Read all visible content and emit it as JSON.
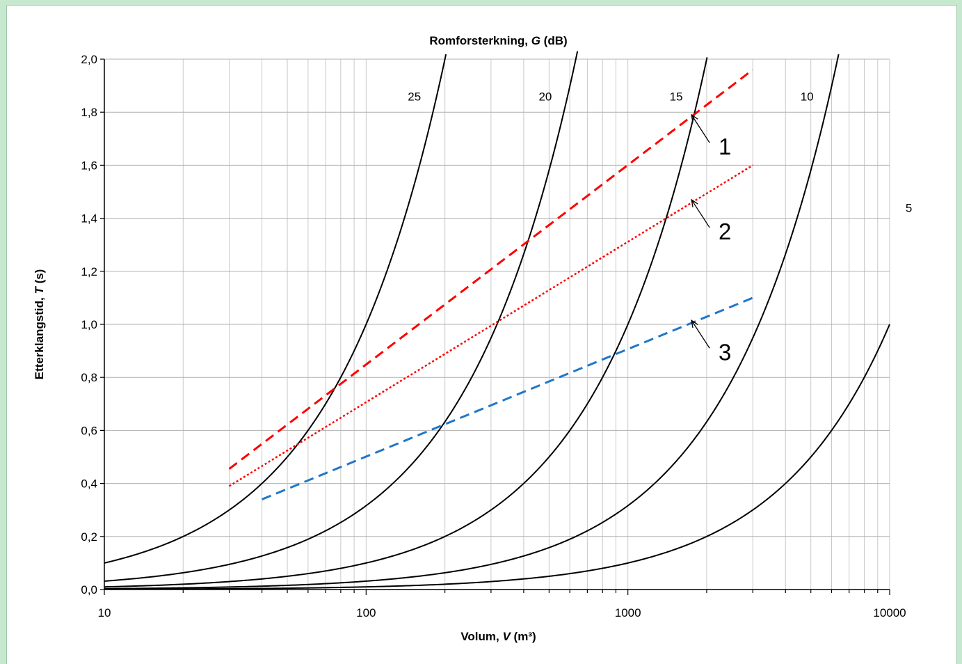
{
  "chart_data": {
    "type": "line",
    "title": "",
    "top_axis_title": {
      "main": "Romforsterkning, ",
      "italic": "G",
      "tail": " (dB)"
    },
    "xlabel": {
      "main": "Volum, ",
      "italic": "V",
      "tail": " (m³)"
    },
    "ylabel": {
      "main": "Etterklangstid, ",
      "italic": "T",
      "tail": " (s)"
    },
    "x_scale": "log",
    "xlim": [
      10,
      10000
    ],
    "ylim": [
      0,
      2.0
    ],
    "x_ticks": [
      {
        "value": 10,
        "label": "10"
      },
      {
        "value": 100,
        "label": "100"
      },
      {
        "value": 1000,
        "label": "1000"
      },
      {
        "value": 10000,
        "label": "10000"
      }
    ],
    "y_ticks": [
      {
        "value": 0,
        "label": "0,0"
      },
      {
        "value": 0.2,
        "label": "0,2"
      },
      {
        "value": 0.4,
        "label": "0,4"
      },
      {
        "value": 0.6,
        "label": "0,6"
      },
      {
        "value": 0.8,
        "label": "0,8"
      },
      {
        "value": 1.0,
        "label": "1,0"
      },
      {
        "value": 1.2,
        "label": "1,2"
      },
      {
        "value": 1.4,
        "label": "1,4"
      },
      {
        "value": 1.6,
        "label": "1,6"
      },
      {
        "value": 1.8,
        "label": "1,8"
      },
      {
        "value": 2.0,
        "label": "2,0"
      }
    ],
    "grid": true,
    "gain_curves": [
      {
        "label": "25",
        "g_db": 25,
        "label_at": [
          14.5,
          1.86
        ]
      },
      {
        "label": "20",
        "g_db": 20,
        "label_at": [
          12.4,
          1.86
        ]
      },
      {
        "label": "15",
        "g_db": 15,
        "label_at": [
          12.05,
          1.86
        ]
      },
      {
        "label": "10",
        "g_db": 10,
        "label_at": [
          11.6,
          1.86
        ]
      },
      {
        "label": "5",
        "g_db": 5,
        "label_at": [
          12.0,
          1.44
        ]
      }
    ],
    "reference_lines": [
      {
        "label": "1",
        "x": [
          30,
          3000
        ],
        "y": [
          0.455,
          1.96
        ],
        "color": "#ff0000",
        "style": "dashed",
        "arrow_at": [
          1750,
          1.79
        ],
        "label_at": [
          2400,
          1.65
        ]
      },
      {
        "label": "2",
        "x": [
          30,
          3000
        ],
        "y": [
          0.39,
          1.6
        ],
        "color": "#ff0000",
        "style": "dotted",
        "arrow_at": [
          1750,
          1.47
        ],
        "label_at": [
          2400,
          1.3
        ]
      },
      {
        "label": "3",
        "x": [
          40,
          3000
        ],
        "y": [
          0.34,
          1.1
        ],
        "color": "#1f77c8",
        "style": "dashed",
        "arrow_at": [
          1750,
          1.015
        ],
        "label_at": [
          2400,
          0.86
        ]
      }
    ]
  }
}
